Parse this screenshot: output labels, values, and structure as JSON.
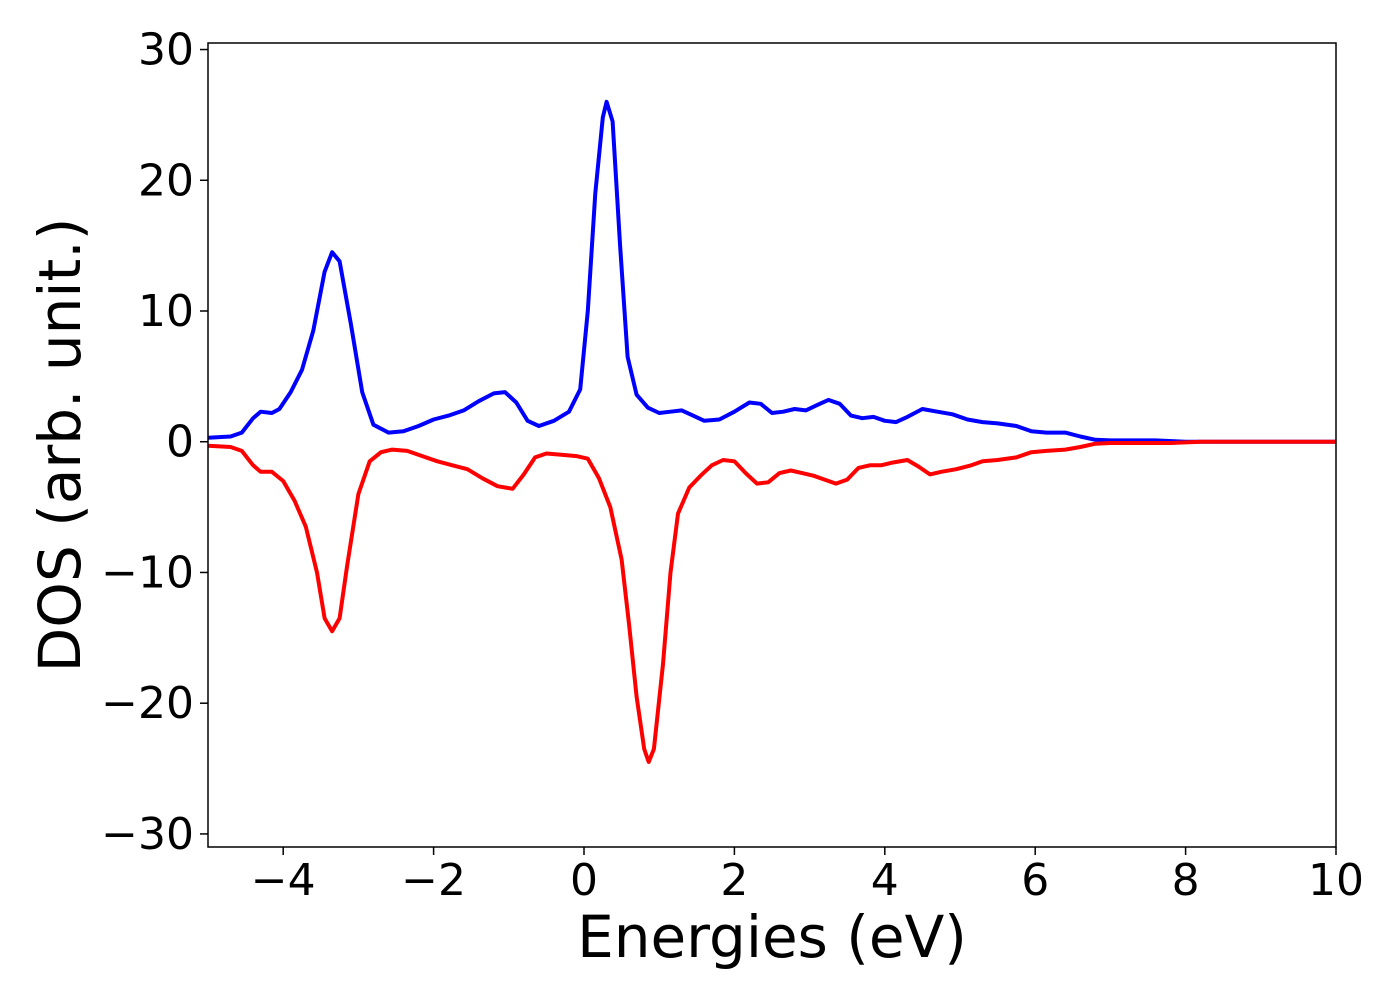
{
  "chart_data": {
    "type": "line",
    "title": "",
    "xlabel": "Energies (eV)",
    "ylabel": "DOS (arb. unit.)",
    "xlim": [
      -5,
      10
    ],
    "ylim": [
      -31,
      30.5
    ],
    "xticks": [
      -4,
      -2,
      0,
      2,
      4,
      6,
      8,
      10
    ],
    "yticks": [
      -30,
      -20,
      -10,
      0,
      10,
      20,
      30
    ],
    "xtick_labels": [
      "−4",
      "−2",
      "0",
      "2",
      "4",
      "6",
      "8",
      "10"
    ],
    "ytick_labels": [
      "−30",
      "−20",
      "−10",
      "0",
      "10",
      "20",
      "30"
    ],
    "grid": false,
    "legend": "none",
    "series": [
      {
        "color": "#0000ff",
        "points": [
          [
            -5.0,
            0.3
          ],
          [
            -4.7,
            0.4
          ],
          [
            -4.55,
            0.7
          ],
          [
            -4.4,
            1.8
          ],
          [
            -4.3,
            2.3
          ],
          [
            -4.15,
            2.2
          ],
          [
            -4.05,
            2.5
          ],
          [
            -3.9,
            3.8
          ],
          [
            -3.75,
            5.5
          ],
          [
            -3.6,
            8.5
          ],
          [
            -3.45,
            13.0
          ],
          [
            -3.35,
            14.5
          ],
          [
            -3.25,
            13.8
          ],
          [
            -3.1,
            9.0
          ],
          [
            -2.95,
            3.8
          ],
          [
            -2.8,
            1.3
          ],
          [
            -2.6,
            0.7
          ],
          [
            -2.4,
            0.8
          ],
          [
            -2.2,
            1.2
          ],
          [
            -2.0,
            1.7
          ],
          [
            -1.8,
            2.0
          ],
          [
            -1.6,
            2.4
          ],
          [
            -1.4,
            3.1
          ],
          [
            -1.2,
            3.7
          ],
          [
            -1.05,
            3.8
          ],
          [
            -0.9,
            3.0
          ],
          [
            -0.75,
            1.6
          ],
          [
            -0.6,
            1.2
          ],
          [
            -0.4,
            1.6
          ],
          [
            -0.2,
            2.3
          ],
          [
            -0.05,
            4.0
          ],
          [
            0.05,
            10.0
          ],
          [
            0.15,
            19.0
          ],
          [
            0.25,
            24.8
          ],
          [
            0.3,
            26.0
          ],
          [
            0.38,
            24.5
          ],
          [
            0.48,
            15.0
          ],
          [
            0.58,
            6.5
          ],
          [
            0.7,
            3.6
          ],
          [
            0.85,
            2.6
          ],
          [
            1.0,
            2.2
          ],
          [
            1.15,
            2.3
          ],
          [
            1.3,
            2.4
          ],
          [
            1.45,
            2.0
          ],
          [
            1.6,
            1.6
          ],
          [
            1.8,
            1.7
          ],
          [
            2.0,
            2.3
          ],
          [
            2.2,
            3.0
          ],
          [
            2.35,
            2.9
          ],
          [
            2.5,
            2.2
          ],
          [
            2.65,
            2.3
          ],
          [
            2.8,
            2.5
          ],
          [
            2.95,
            2.4
          ],
          [
            3.1,
            2.8
          ],
          [
            3.25,
            3.2
          ],
          [
            3.4,
            2.9
          ],
          [
            3.55,
            2.0
          ],
          [
            3.7,
            1.8
          ],
          [
            3.85,
            1.9
          ],
          [
            4.0,
            1.6
          ],
          [
            4.15,
            1.5
          ],
          [
            4.3,
            1.9
          ],
          [
            4.5,
            2.5
          ],
          [
            4.7,
            2.3
          ],
          [
            4.9,
            2.1
          ],
          [
            5.1,
            1.7
          ],
          [
            5.3,
            1.5
          ],
          [
            5.5,
            1.4
          ],
          [
            5.75,
            1.2
          ],
          [
            5.95,
            0.8
          ],
          [
            6.15,
            0.7
          ],
          [
            6.4,
            0.7
          ],
          [
            6.6,
            0.4
          ],
          [
            6.8,
            0.15
          ],
          [
            7.0,
            0.1
          ],
          [
            7.3,
            0.1
          ],
          [
            7.6,
            0.1
          ],
          [
            8.0,
            0.0
          ],
          [
            10.0,
            0.0
          ]
        ]
      },
      {
        "color": "#ff0000",
        "points": [
          [
            -5.0,
            -0.3
          ],
          [
            -4.7,
            -0.4
          ],
          [
            -4.55,
            -0.7
          ],
          [
            -4.4,
            -1.8
          ],
          [
            -4.3,
            -2.3
          ],
          [
            -4.15,
            -2.3
          ],
          [
            -4.0,
            -3.0
          ],
          [
            -3.85,
            -4.5
          ],
          [
            -3.7,
            -6.5
          ],
          [
            -3.55,
            -10.0
          ],
          [
            -3.45,
            -13.5
          ],
          [
            -3.35,
            -14.5
          ],
          [
            -3.25,
            -13.5
          ],
          [
            -3.15,
            -9.5
          ],
          [
            -3.0,
            -4.0
          ],
          [
            -2.85,
            -1.5
          ],
          [
            -2.7,
            -0.8
          ],
          [
            -2.55,
            -0.6
          ],
          [
            -2.35,
            -0.7
          ],
          [
            -2.15,
            -1.1
          ],
          [
            -1.95,
            -1.5
          ],
          [
            -1.75,
            -1.8
          ],
          [
            -1.55,
            -2.1
          ],
          [
            -1.35,
            -2.8
          ],
          [
            -1.15,
            -3.4
          ],
          [
            -0.95,
            -3.6
          ],
          [
            -0.8,
            -2.5
          ],
          [
            -0.65,
            -1.2
          ],
          [
            -0.5,
            -0.9
          ],
          [
            -0.3,
            -1.0
          ],
          [
            -0.1,
            -1.1
          ],
          [
            0.05,
            -1.3
          ],
          [
            0.2,
            -2.8
          ],
          [
            0.35,
            -5.0
          ],
          [
            0.5,
            -9.0
          ],
          [
            0.6,
            -14.0
          ],
          [
            0.7,
            -19.5
          ],
          [
            0.8,
            -23.5
          ],
          [
            0.86,
            -24.5
          ],
          [
            0.93,
            -23.5
          ],
          [
            1.05,
            -17.0
          ],
          [
            1.15,
            -10.0
          ],
          [
            1.25,
            -5.5
          ],
          [
            1.4,
            -3.5
          ],
          [
            1.55,
            -2.6
          ],
          [
            1.7,
            -1.8
          ],
          [
            1.85,
            -1.4
          ],
          [
            2.0,
            -1.5
          ],
          [
            2.15,
            -2.4
          ],
          [
            2.3,
            -3.2
          ],
          [
            2.45,
            -3.1
          ],
          [
            2.6,
            -2.4
          ],
          [
            2.75,
            -2.2
          ],
          [
            2.9,
            -2.4
          ],
          [
            3.05,
            -2.6
          ],
          [
            3.2,
            -2.9
          ],
          [
            3.35,
            -3.2
          ],
          [
            3.5,
            -2.9
          ],
          [
            3.65,
            -2.0
          ],
          [
            3.8,
            -1.8
          ],
          [
            3.95,
            -1.8
          ],
          [
            4.1,
            -1.6
          ],
          [
            4.3,
            -1.4
          ],
          [
            4.45,
            -1.9
          ],
          [
            4.6,
            -2.5
          ],
          [
            4.75,
            -2.3
          ],
          [
            4.95,
            -2.1
          ],
          [
            5.15,
            -1.8
          ],
          [
            5.3,
            -1.5
          ],
          [
            5.5,
            -1.4
          ],
          [
            5.75,
            -1.2
          ],
          [
            5.95,
            -0.8
          ],
          [
            6.15,
            -0.7
          ],
          [
            6.4,
            -0.6
          ],
          [
            6.6,
            -0.4
          ],
          [
            6.8,
            -0.15
          ],
          [
            7.0,
            -0.1
          ],
          [
            7.4,
            -0.1
          ],
          [
            7.8,
            -0.1
          ],
          [
            8.2,
            0.0
          ],
          [
            10.0,
            0.0
          ]
        ]
      }
    ]
  }
}
